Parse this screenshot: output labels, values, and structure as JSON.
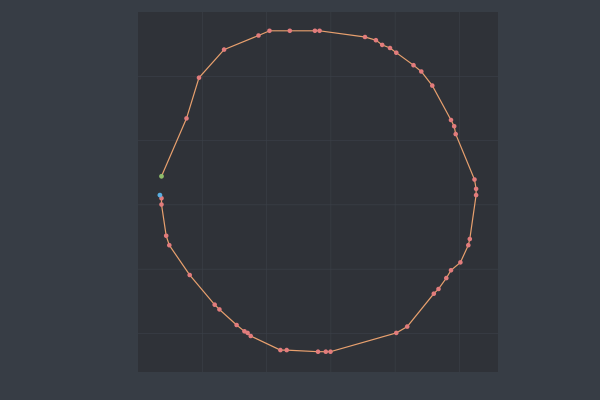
{
  "colors": {
    "page_background": "#373d45",
    "plot_background": "#2f3238",
    "grid": "#3b4048",
    "route_line": "#e8a06e",
    "city_marker": "#e27c7c",
    "start_marker": "#8fbc6a",
    "end_marker": "#5aaee0"
  },
  "chart_data": {
    "type": "line",
    "title": "",
    "xlabel": "",
    "ylabel": "",
    "xlim": [
      -1.15,
      1.15
    ],
    "ylim": [
      -1.15,
      1.15
    ],
    "grid": true,
    "legend": "none",
    "series": [
      {
        "role": "tour",
        "x": [
          -0.84,
          -0.76,
          -0.6,
          -0.38,
          -0.31,
          -0.18,
          -0.02,
          0.01,
          0.3,
          0.37,
          0.41,
          0.46,
          0.5,
          0.61,
          0.66,
          0.73,
          0.85,
          0.87,
          0.88,
          1.0,
          1.01,
          1.01,
          0.97,
          0.96,
          0.91,
          0.85,
          0.82,
          0.77,
          0.74,
          0.57,
          0.5,
          0.08,
          0.05,
          0.0,
          -0.2,
          -0.24,
          -0.43,
          -0.45,
          -0.47,
          -0.52,
          -0.63,
          -0.66,
          -0.82,
          -0.95,
          -0.97,
          -1.0,
          -1.0
        ],
        "y": [
          0.47,
          0.73,
          0.91,
          1.0,
          1.03,
          1.03,
          1.03,
          1.03,
          0.99,
          0.97,
          0.94,
          0.92,
          0.89,
          0.81,
          0.77,
          0.68,
          0.46,
          0.42,
          0.37,
          0.08,
          0.02,
          -0.02,
          -0.3,
          -0.34,
          -0.45,
          -0.5,
          -0.55,
          -0.62,
          -0.65,
          -0.86,
          -0.9,
          -1.02,
          -1.02,
          -1.02,
          -1.01,
          -1.01,
          -0.92,
          -0.9,
          -0.89,
          -0.85,
          -0.75,
          -0.72,
          -0.53,
          -0.34,
          -0.28,
          -0.08,
          -0.04
        ]
      },
      {
        "role": "start",
        "x": [
          -1.0
        ],
        "y": [
          0.1
        ]
      },
      {
        "role": "end",
        "x": [
          -1.01
        ],
        "y": [
          -0.02
        ]
      }
    ]
  }
}
